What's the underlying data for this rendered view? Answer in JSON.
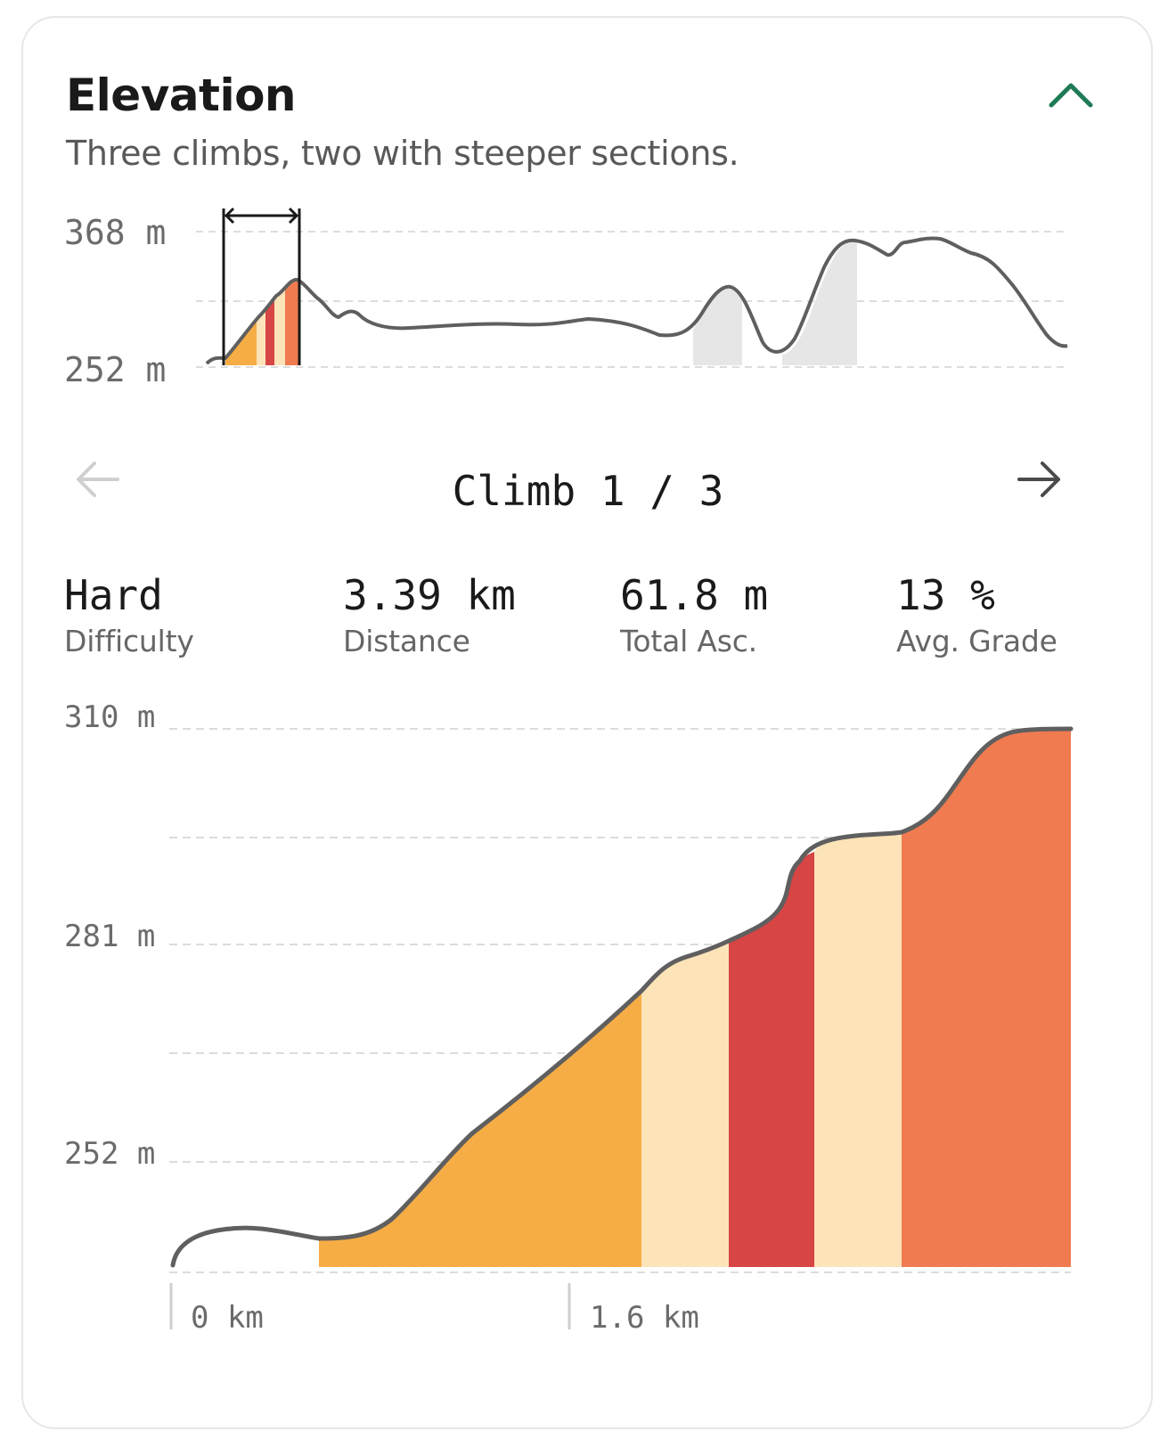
{
  "card": {
    "title": "Elevation",
    "subtitle": "Three climbs, two with steeper sections.",
    "collapse_icon": "chevron-up-icon",
    "accent_color": "#1e7a55"
  },
  "overview": {
    "y_max_label": "368 m",
    "y_min_label": "252 m",
    "selection_icon": "double-arrow-icon"
  },
  "navigator": {
    "label": "Climb 1 / 3",
    "prev_icon": "arrow-left-icon",
    "next_icon": "arrow-right-icon"
  },
  "stats": [
    {
      "value": "Hard",
      "label": "Difficulty"
    },
    {
      "value": "3.39 km",
      "label": "Distance"
    },
    {
      "value": "61.8 m",
      "label": "Total Asc."
    },
    {
      "value": "13 %",
      "label": "Avg. Grade"
    }
  ],
  "chart_data": {
    "type": "area",
    "title": "",
    "xlabel": "",
    "ylabel": "",
    "y_tick_labels": [
      "310 m",
      "281 m",
      "252 m"
    ],
    "x_tick_labels": [
      "0 km",
      "1.6 km"
    ],
    "grade_colors": {
      "easy": "#fce3b8",
      "moderate": "#f7ad45",
      "steep": "#f07b50",
      "very_steep": "#d84545"
    },
    "line_color": "#5f5f5f"
  }
}
